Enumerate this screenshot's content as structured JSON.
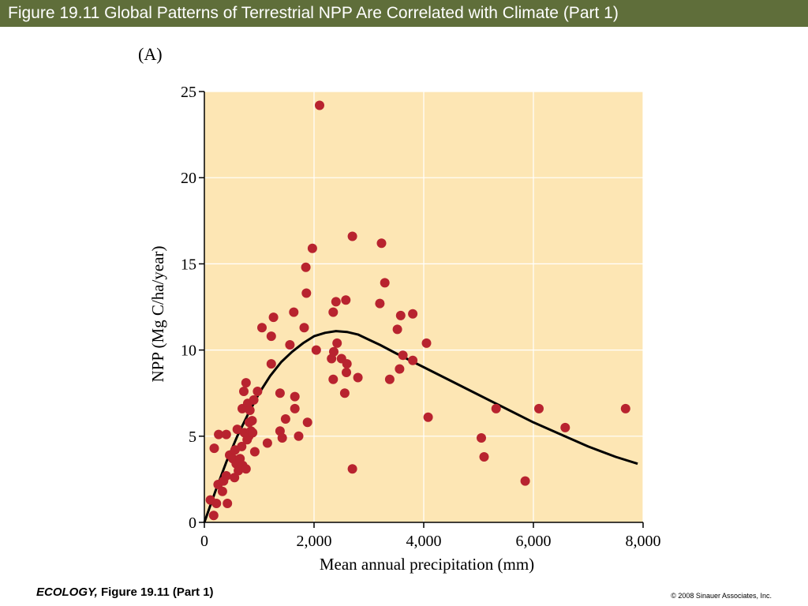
{
  "header": {
    "title": "Figure 19.11  Global Patterns of Terrestrial NPP Are Correlated with Climate (Part 1)"
  },
  "footer": {
    "book": "ECOLOGY,",
    "figure": " Figure 19.11 (Part 1)",
    "copyright": "© 2008 Sinauer Associates, Inc."
  },
  "colors": {
    "title_bar": "#5f6e3a",
    "plot_background": "#fde6b4",
    "point": "#b8232f",
    "curve": "#000000"
  },
  "chart_data": {
    "type": "scatter",
    "panel_label": "(A)",
    "xlabel": "Mean annual precipitation (mm)",
    "ylabel": "NPP (Mg C/ha/year)",
    "xlim": [
      0,
      8000
    ],
    "ylim": [
      0,
      25
    ],
    "x_ticks": [
      0,
      2000,
      4000,
      6000,
      8000
    ],
    "x_tick_labels": [
      "0",
      "2,000",
      "4,000",
      "6,000",
      "8,000"
    ],
    "y_ticks": [
      0,
      5,
      10,
      15,
      20,
      25
    ],
    "y_tick_labels": [
      "0",
      "5",
      "10",
      "15",
      "20",
      "25"
    ],
    "grid": true,
    "points": [
      [
        110,
        1.3
      ],
      [
        170,
        0.4
      ],
      [
        220,
        1.1
      ],
      [
        250,
        2.2
      ],
      [
        180,
        4.3
      ],
      [
        260,
        5.1
      ],
      [
        330,
        1.8
      ],
      [
        350,
        2.4
      ],
      [
        400,
        2.7
      ],
      [
        420,
        1.1
      ],
      [
        400,
        5.1
      ],
      [
        460,
        3.9
      ],
      [
        520,
        3.7
      ],
      [
        550,
        2.6
      ],
      [
        560,
        4.2
      ],
      [
        580,
        3.4
      ],
      [
        600,
        5.4
      ],
      [
        620,
        3.0
      ],
      [
        650,
        3.7
      ],
      [
        680,
        4.4
      ],
      [
        700,
        3.3
      ],
      [
        690,
        6.6
      ],
      [
        720,
        7.6
      ],
      [
        730,
        5.2
      ],
      [
        760,
        3.1
      ],
      [
        760,
        8.1
      ],
      [
        780,
        4.8
      ],
      [
        790,
        6.9
      ],
      [
        810,
        5.0
      ],
      [
        820,
        5.8
      ],
      [
        830,
        6.5
      ],
      [
        850,
        5.3
      ],
      [
        870,
        5.9
      ],
      [
        880,
        5.2
      ],
      [
        900,
        7.1
      ],
      [
        920,
        4.1
      ],
      [
        970,
        7.6
      ],
      [
        1050,
        11.3
      ],
      [
        1150,
        4.6
      ],
      [
        1220,
        9.2
      ],
      [
        1220,
        10.8
      ],
      [
        1260,
        11.9
      ],
      [
        1380,
        7.5
      ],
      [
        1380,
        5.3
      ],
      [
        1420,
        4.9
      ],
      [
        1480,
        6.0
      ],
      [
        1560,
        10.3
      ],
      [
        1630,
        12.2
      ],
      [
        1650,
        7.3
      ],
      [
        1650,
        6.6
      ],
      [
        1720,
        5.0
      ],
      [
        1820,
        11.3
      ],
      [
        1850,
        14.8
      ],
      [
        1860,
        13.3
      ],
      [
        1880,
        5.8
      ],
      [
        1970,
        15.9
      ],
      [
        2040,
        10.0
      ],
      [
        2100,
        24.2
      ],
      [
        2320,
        9.5
      ],
      [
        2350,
        8.3
      ],
      [
        2350,
        12.2
      ],
      [
        2360,
        9.9
      ],
      [
        2400,
        12.8
      ],
      [
        2420,
        10.4
      ],
      [
        2500,
        9.5
      ],
      [
        2560,
        7.5
      ],
      [
        2580,
        12.9
      ],
      [
        2590,
        8.7
      ],
      [
        2600,
        9.2
      ],
      [
        2700,
        3.1
      ],
      [
        2700,
        16.6
      ],
      [
        2800,
        8.4
      ],
      [
        3200,
        12.7
      ],
      [
        3230,
        16.2
      ],
      [
        3290,
        13.9
      ],
      [
        3380,
        8.3
      ],
      [
        3520,
        11.2
      ],
      [
        3560,
        8.9
      ],
      [
        3580,
        12.0
      ],
      [
        3620,
        9.7
      ],
      [
        3800,
        12.1
      ],
      [
        3800,
        9.4
      ],
      [
        4050,
        10.4
      ],
      [
        4080,
        6.1
      ],
      [
        5050,
        4.9
      ],
      [
        5100,
        3.8
      ],
      [
        5320,
        6.6
      ],
      [
        5850,
        2.4
      ],
      [
        6100,
        6.6
      ],
      [
        6580,
        5.5
      ],
      [
        7680,
        6.6
      ]
    ],
    "curve": [
      [
        0,
        0
      ],
      [
        200,
        1.8
      ],
      [
        400,
        3.5
      ],
      [
        600,
        5.0
      ],
      [
        800,
        6.3
      ],
      [
        1000,
        7.5
      ],
      [
        1200,
        8.5
      ],
      [
        1400,
        9.3
      ],
      [
        1600,
        9.9
      ],
      [
        1800,
        10.4
      ],
      [
        2000,
        10.8
      ],
      [
        2200,
        11.0
      ],
      [
        2400,
        11.1
      ],
      [
        2600,
        11.05
      ],
      [
        2800,
        10.9
      ],
      [
        3000,
        10.6
      ],
      [
        3200,
        10.3
      ],
      [
        3500,
        9.8
      ],
      [
        4000,
        9.0
      ],
      [
        4500,
        8.2
      ],
      [
        5000,
        7.4
      ],
      [
        5500,
        6.6
      ],
      [
        6000,
        5.8
      ],
      [
        6500,
        5.1
      ],
      [
        7000,
        4.4
      ],
      [
        7500,
        3.8
      ],
      [
        7900,
        3.4
      ]
    ]
  }
}
